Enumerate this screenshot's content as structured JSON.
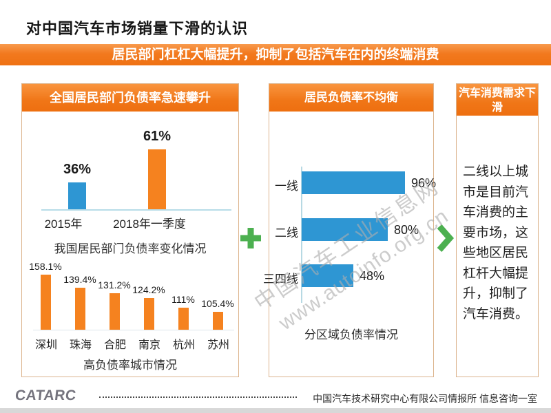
{
  "page": {
    "title": "对中国汽车市场销量下滑的认识",
    "banner": "居民部门杠杠大幅提升，抑制了包括汽车在内的终端消费"
  },
  "panels": {
    "left": {
      "header": "全国居民部门负债率急速攀升"
    },
    "middle": {
      "header": "居民负债率不均衡"
    },
    "right": {
      "header": "汽车消费需求下滑",
      "body": "二线以上城市是目前汽车消费的主要市场，这些地区居民杠杆大幅提升，抑制了汽车消费。"
    }
  },
  "chart_data": [
    {
      "type": "bar",
      "title": "我国居民部门负债率变化情况",
      "categories": [
        "2015年",
        "2018年一季度"
      ],
      "values": [
        36,
        61
      ],
      "labels": [
        "36%",
        "61%"
      ],
      "unit": "%",
      "colors": [
        "#2E96D3",
        "#F5821F"
      ],
      "axis": "light-blue baseline, no gridlines, no y-axis"
    },
    {
      "type": "bar",
      "title": "高负债率城市情况",
      "categories": [
        "深圳",
        "珠海",
        "合肥",
        "南京",
        "杭州",
        "苏州"
      ],
      "values": [
        158.1,
        139.4,
        131.2,
        124.2,
        111,
        105.4
      ],
      "labels": [
        "158.1%",
        "139.4%",
        "131.2%",
        "124.2%",
        "111%",
        "105.4%"
      ],
      "unit": "%",
      "color": "#F5821F",
      "axis": "faint baseline, no gridlines"
    },
    {
      "type": "bar",
      "orientation": "horizontal",
      "title": "分区域负债率情况",
      "categories": [
        "一线",
        "二线",
        "三四线"
      ],
      "values": [
        96,
        80,
        48
      ],
      "labels": [
        "96%",
        "80%",
        "48%"
      ],
      "unit": "%",
      "color": "#2E96D3",
      "axis": "light-blue vertical axis line, no gridlines"
    }
  ],
  "connectors": {
    "plus": "plus-sign",
    "arrow": "chevron-right",
    "color": "#4CB050"
  },
  "watermark": {
    "line1": "中国汽车工业信息网",
    "line2": "www.autoinfo.org.cn"
  },
  "footer": {
    "logo": "CATARC",
    "org": "中国汽车技术研究中心有限公司情报所  信息咨询一室"
  },
  "colors": {
    "accent_orange": "#F0791E",
    "bar_orange": "#F5821F",
    "bar_blue": "#2E96D3",
    "green": "#4CB050",
    "panel_border": "#DCB38C",
    "watermark_gray": "#AEAEAE"
  }
}
